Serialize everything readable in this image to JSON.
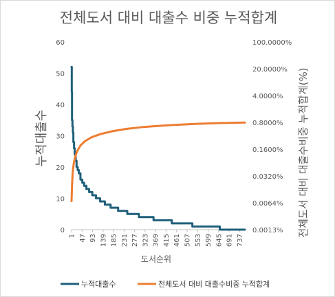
{
  "chart_data": {
    "type": "line",
    "title": "전체도서 대비 대출수 비중 누적합계",
    "xlabel": "도서순위",
    "ylabel_left": "누적대출수",
    "ylabel_right": "전체도서 대비 대출수비중 누적합계(%)",
    "x_ticks": [
      "1",
      "47",
      "93",
      "139",
      "185",
      "231",
      "277",
      "323",
      "369",
      "415",
      "461",
      "507",
      "553",
      "599",
      "645",
      "691",
      "737"
    ],
    "y_left_ticks": [
      "0",
      "10",
      "20",
      "30",
      "40",
      "50",
      "60"
    ],
    "y_left_range": [
      0,
      60
    ],
    "y_right_ticks": [
      "0.0013%",
      "0.0064%",
      "0.0320%",
      "0.1600%",
      "0.8000%",
      "4.0000%",
      "20.0000%",
      "100.0000%"
    ],
    "y_right_scale": "log5",
    "grid": false,
    "legend_position": "bottom",
    "series": [
      {
        "name": "누적대출수",
        "axis": "left",
        "color": "#1f5f7a",
        "points": [
          [
            1,
            52
          ],
          [
            2,
            44
          ],
          [
            3,
            35
          ],
          [
            5,
            33
          ],
          [
            7,
            31
          ],
          [
            9,
            28
          ],
          [
            12,
            26
          ],
          [
            15,
            24
          ],
          [
            19,
            22
          ],
          [
            23,
            20
          ],
          [
            28,
            19
          ],
          [
            33,
            18
          ],
          [
            40,
            16
          ],
          [
            48,
            15
          ],
          [
            56,
            14
          ],
          [
            66,
            13
          ],
          [
            78,
            12
          ],
          [
            92,
            11
          ],
          [
            108,
            10
          ],
          [
            126,
            9
          ],
          [
            147,
            8
          ],
          [
            172,
            7
          ],
          [
            205,
            6
          ],
          [
            245,
            5
          ],
          [
            296,
            4
          ],
          [
            360,
            3
          ],
          [
            440,
            2
          ],
          [
            530,
            1
          ],
          [
            650,
            0
          ],
          [
            760,
            0
          ]
        ]
      },
      {
        "name": "전체도서 대비 대출수비중 누적합계",
        "axis": "right",
        "color": "#ed7d31",
        "points": [
          [
            1,
            0.0071
          ],
          [
            2,
            0.011
          ],
          [
            4,
            0.024
          ],
          [
            7,
            0.045
          ],
          [
            11,
            0.07
          ],
          [
            17,
            0.1
          ],
          [
            25,
            0.14
          ],
          [
            40,
            0.2
          ],
          [
            60,
            0.26
          ],
          [
            90,
            0.33
          ],
          [
            130,
            0.4
          ],
          [
            180,
            0.47
          ],
          [
            240,
            0.54
          ],
          [
            320,
            0.61
          ],
          [
            420,
            0.67
          ],
          [
            540,
            0.73
          ],
          [
            660,
            0.77
          ],
          [
            760,
            0.79
          ]
        ]
      }
    ]
  }
}
